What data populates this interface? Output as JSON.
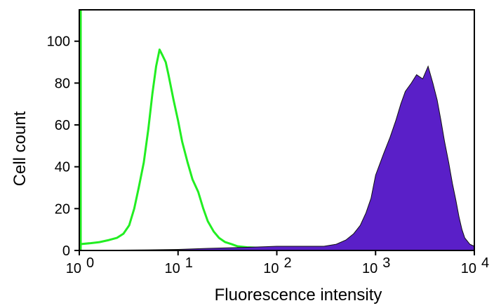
{
  "chart_data": {
    "type": "area",
    "xscale": "log",
    "xlim": [
      1,
      10000
    ],
    "ylim": [
      0,
      115
    ],
    "xlabel": "Fluorescence intensity",
    "ylabel": "Cell count",
    "grid": false,
    "legend": "none",
    "x_ticks": [
      {
        "base": "10",
        "exp": "0",
        "value": 1
      },
      {
        "base": "10",
        "exp": "1",
        "value": 10
      },
      {
        "base": "10",
        "exp": "2",
        "value": 100
      },
      {
        "base": "10",
        "exp": "3",
        "value": 1000
      },
      {
        "base": "10",
        "exp": "4",
        "value": 10000
      }
    ],
    "y_ticks": [
      {
        "label": "0",
        "value": 0
      },
      {
        "label": "20",
        "value": 20
      },
      {
        "label": "40",
        "value": 40
      },
      {
        "label": "60",
        "value": 60
      },
      {
        "label": "80",
        "value": 80
      },
      {
        "label": "100",
        "value": 100
      }
    ],
    "series": [
      {
        "style": "outline",
        "color": "#22ee22",
        "x": [
          1.0,
          1.3,
          1.6,
          2.0,
          2.4,
          2.8,
          3.2,
          3.6,
          4.0,
          4.5,
          5.0,
          5.5,
          6.0,
          6.5,
          7.0,
          7.5,
          8.0,
          9.0,
          10.0,
          11.0,
          12.5,
          14.0,
          16.0,
          18.0,
          20.0,
          23.0,
          26.0,
          30.0,
          35.0,
          40.0,
          50.0,
          70.0,
          100.0,
          200.0,
          400.0,
          1000.0,
          3000.0,
          10000.0
        ],
        "y": [
          3,
          3.5,
          4,
          5,
          6,
          8,
          12,
          20,
          30,
          42,
          58,
          75,
          88,
          96,
          93,
          90,
          84,
          72,
          62,
          52,
          42,
          34,
          28,
          20,
          14,
          9,
          6,
          4,
          3,
          2,
          1.5,
          1.2,
          1,
          0.8,
          0.8,
          1,
          1,
          0.5
        ]
      },
      {
        "style": "filled",
        "color": "#5a1fc8",
        "x": [
          1.0,
          5.0,
          10.0,
          20.0,
          50.0,
          100.0,
          200.0,
          300.0,
          400.0,
          500.0,
          600.0,
          700.0,
          800.0,
          900.0,
          1000.0,
          1200.0,
          1400.0,
          1600.0,
          1800.0,
          2000.0,
          2300.0,
          2600.0,
          3000.0,
          3400.0,
          3800.0,
          4200.0,
          4600.0,
          5000.0,
          5500.0,
          6000.0,
          6500.0,
          7000.0,
          7500.0,
          8000.0,
          9000.0,
          10000.0
        ],
        "y": [
          0,
          0.3,
          0.5,
          1,
          1.5,
          2,
          2,
          2,
          3,
          5,
          8,
          12,
          18,
          25,
          36,
          46,
          54,
          62,
          70,
          76,
          80,
          84,
          82,
          88,
          80,
          72,
          62,
          52,
          42,
          32,
          24,
          16,
          10,
          6,
          3,
          2
        ]
      }
    ]
  }
}
